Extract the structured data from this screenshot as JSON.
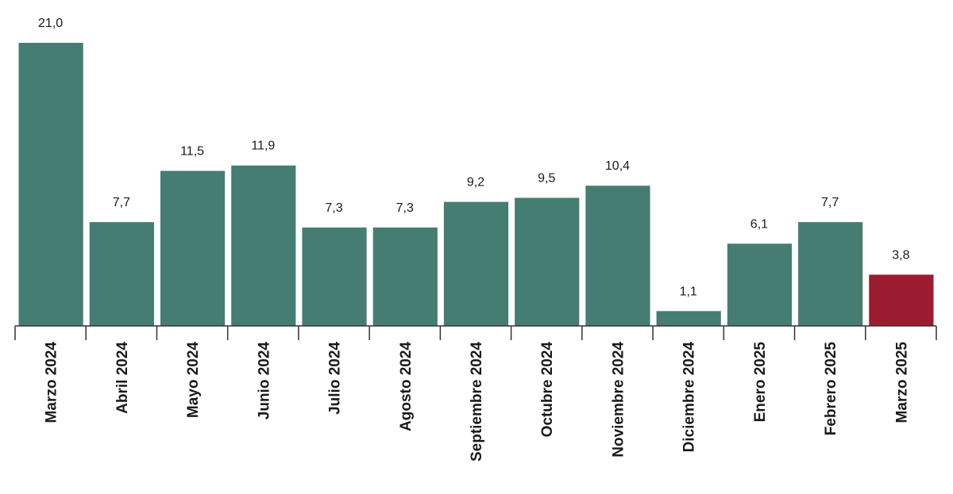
{
  "chart_data": {
    "type": "bar",
    "categories": [
      "Marzo 2024",
      "Abril 2024",
      "Mayo 2024",
      "Junio 2024",
      "Julio 2024",
      "Agosto 2024",
      "Septiembre 2024",
      "Octubre 2024",
      "Noviembre 2024",
      "Diciembre 2024",
      "Enero 2025",
      "Febrero 2025",
      "Marzo 2025"
    ],
    "values": [
      21.0,
      7.7,
      11.5,
      11.9,
      7.3,
      7.3,
      9.2,
      9.5,
      10.4,
      1.1,
      6.1,
      7.7,
      3.8
    ],
    "value_labels": [
      "21,0",
      "7,7",
      "11,5",
      "11,9",
      "7,3",
      "7,3",
      "9,2",
      "9,5",
      "10,4",
      "1,1",
      "6,1",
      "7,7",
      "3,8"
    ],
    "title": "",
    "xlabel": "",
    "ylabel": "",
    "ylim": [
      0,
      21
    ],
    "grid": false,
    "colors": {
      "bar": "#467d73",
      "highlight": "#9b1b30",
      "axis": "#333333"
    },
    "highlight_index": 12
  }
}
